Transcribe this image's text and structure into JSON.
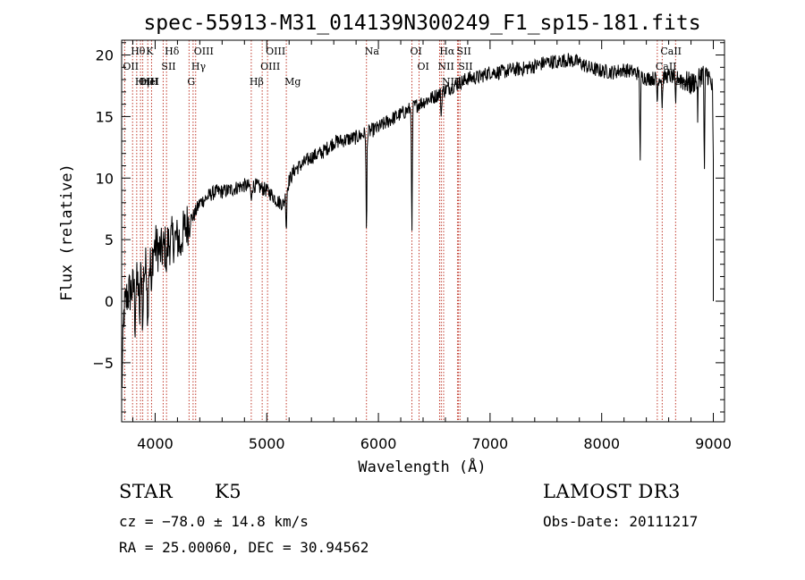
{
  "chart_data": {
    "type": "line",
    "title": "spec-55913-M31_014139N300249_F1_sp15-181.fits",
    "xlabel": "Wavelength (Å)",
    "ylabel": "Flux (relative)",
    "xlim": [
      3700,
      9100
    ],
    "ylim": [
      -9.8,
      21.2
    ],
    "xticks": [
      4000,
      5000,
      6000,
      7000,
      8000,
      9000
    ],
    "yticks": [
      -5,
      0,
      5,
      10,
      15,
      20
    ],
    "series": [
      {
        "name": "flux",
        "anchors": [
          [
            3700,
            -7.5
          ],
          [
            3720,
            -1
          ],
          [
            3750,
            0.5
          ],
          [
            3800,
            1
          ],
          [
            3850,
            1.5
          ],
          [
            3900,
            2.5
          ],
          [
            3950,
            3
          ],
          [
            4000,
            4.5
          ],
          [
            4050,
            4
          ],
          [
            4100,
            4.5
          ],
          [
            4150,
            5
          ],
          [
            4200,
            5
          ],
          [
            4250,
            5.5
          ],
          [
            4300,
            6.5
          ],
          [
            4350,
            7
          ],
          [
            4400,
            8
          ],
          [
            4450,
            8.3
          ],
          [
            4500,
            8.7
          ],
          [
            4550,
            8.9
          ],
          [
            4600,
            8.9
          ],
          [
            4650,
            9
          ],
          [
            4700,
            9.1
          ],
          [
            4750,
            9.3
          ],
          [
            4800,
            9.4
          ],
          [
            4850,
            9.3
          ],
          [
            4900,
            9.4
          ],
          [
            4950,
            9.2
          ],
          [
            5000,
            9
          ],
          [
            5050,
            8.6
          ],
          [
            5100,
            8.1
          ],
          [
            5150,
            7.9
          ],
          [
            5200,
            9.8
          ],
          [
            5250,
            10.7
          ],
          [
            5300,
            11
          ],
          [
            5400,
            11.7
          ],
          [
            5500,
            12.1
          ],
          [
            5600,
            12.9
          ],
          [
            5700,
            13.1
          ],
          [
            5800,
            13.3
          ],
          [
            5900,
            13.7
          ],
          [
            6000,
            14.1
          ],
          [
            6100,
            14.7
          ],
          [
            6200,
            15.2
          ],
          [
            6300,
            15.7
          ],
          [
            6400,
            16.2
          ],
          [
            6500,
            16.6
          ],
          [
            6600,
            17.2
          ],
          [
            6700,
            17.6
          ],
          [
            6800,
            18.1
          ],
          [
            6900,
            18.2
          ],
          [
            7000,
            18.6
          ],
          [
            7100,
            18.6
          ],
          [
            7200,
            18.8
          ],
          [
            7300,
            18.9
          ],
          [
            7400,
            19.1
          ],
          [
            7500,
            19.4
          ],
          [
            7600,
            19.5
          ],
          [
            7700,
            19.6
          ],
          [
            7800,
            19.4
          ],
          [
            7900,
            18.9
          ],
          [
            8000,
            18.7
          ],
          [
            8100,
            18.6
          ],
          [
            8200,
            18.8
          ],
          [
            8300,
            18.6
          ],
          [
            8400,
            18.1
          ],
          [
            8500,
            18.1
          ],
          [
            8600,
            18.3
          ],
          [
            8700,
            18.1
          ],
          [
            8800,
            17.6
          ],
          [
            8900,
            18.5
          ],
          [
            8950,
            18.5
          ],
          [
            9000,
            17
          ]
        ],
        "absorption_lines": [
          [
            3820,
            -3
          ],
          [
            3860,
            -4
          ],
          [
            3889,
            -5
          ],
          [
            3934,
            -5
          ],
          [
            3968,
            -4
          ],
          [
            4102,
            -2
          ],
          [
            4227,
            -1.5
          ],
          [
            4308,
            -1
          ],
          [
            4861,
            -1.5
          ],
          [
            5175,
            -3
          ],
          [
            5893,
            -8.5
          ],
          [
            6300,
            -10.5
          ],
          [
            6563,
            -2
          ],
          [
            7600,
            -1
          ],
          [
            8345,
            -7
          ],
          [
            8498,
            -2
          ],
          [
            8542,
            -2.5
          ],
          [
            8662,
            -2.5
          ],
          [
            8860,
            -3
          ],
          [
            8920,
            -8
          ],
          [
            9000,
            -6
          ]
        ],
        "noise": 0.6
      }
    ],
    "line_markers": [
      {
        "label": "Hθ",
        "wave": 3798
      },
      {
        "label": "K",
        "wave": 3934
      },
      {
        "label": "Hδ",
        "wave": 4102
      },
      {
        "label": "OII",
        "wave": 3727
      },
      {
        "label": "HeI",
        "wave": 3889
      },
      {
        "label": "SII",
        "wave": 4072
      },
      {
        "label": "OIII",
        "wave": 3869
      },
      {
        "label": "Hη",
        "wave": 3835
      },
      {
        "label": "H",
        "wave": 3968
      },
      {
        "label": "OIII",
        "wave": 4363
      },
      {
        "label": "Hγ",
        "wave": 4340
      },
      {
        "label": "G",
        "wave": 4304
      },
      {
        "label": "OIII",
        "wave": 5007
      },
      {
        "label": "OIII",
        "wave": 4959
      },
      {
        "label": "Hβ",
        "wave": 4861
      },
      {
        "label": "Mg",
        "wave": 5175
      },
      {
        "label": "Na",
        "wave": 5893
      },
      {
        "label": "OI",
        "wave": 6300
      },
      {
        "label": "OI",
        "wave": 6364
      },
      {
        "label": "Hα",
        "wave": 6563
      },
      {
        "label": "SII",
        "wave": 6717
      },
      {
        "label": "NII",
        "wave": 6548
      },
      {
        "label": "Li",
        "wave": 6708
      },
      {
        "label": "NII",
        "wave": 6584
      },
      {
        "label": "SII",
        "wave": 6731
      },
      {
        "label": "CaII",
        "wave": 8542
      },
      {
        "label": "CaII",
        "wave": 8498
      },
      {
        "label": "CaII",
        "wave": 8662
      }
    ]
  },
  "info": {
    "object_class": "STAR",
    "subclass": "K5",
    "survey": "LAMOST DR3",
    "redshift": "cz = −78.0 ± 14.8 km/s",
    "obs_date": "Obs-Date: 20111217",
    "coords": "RA =  25.00060, DEC =  30.94562"
  }
}
